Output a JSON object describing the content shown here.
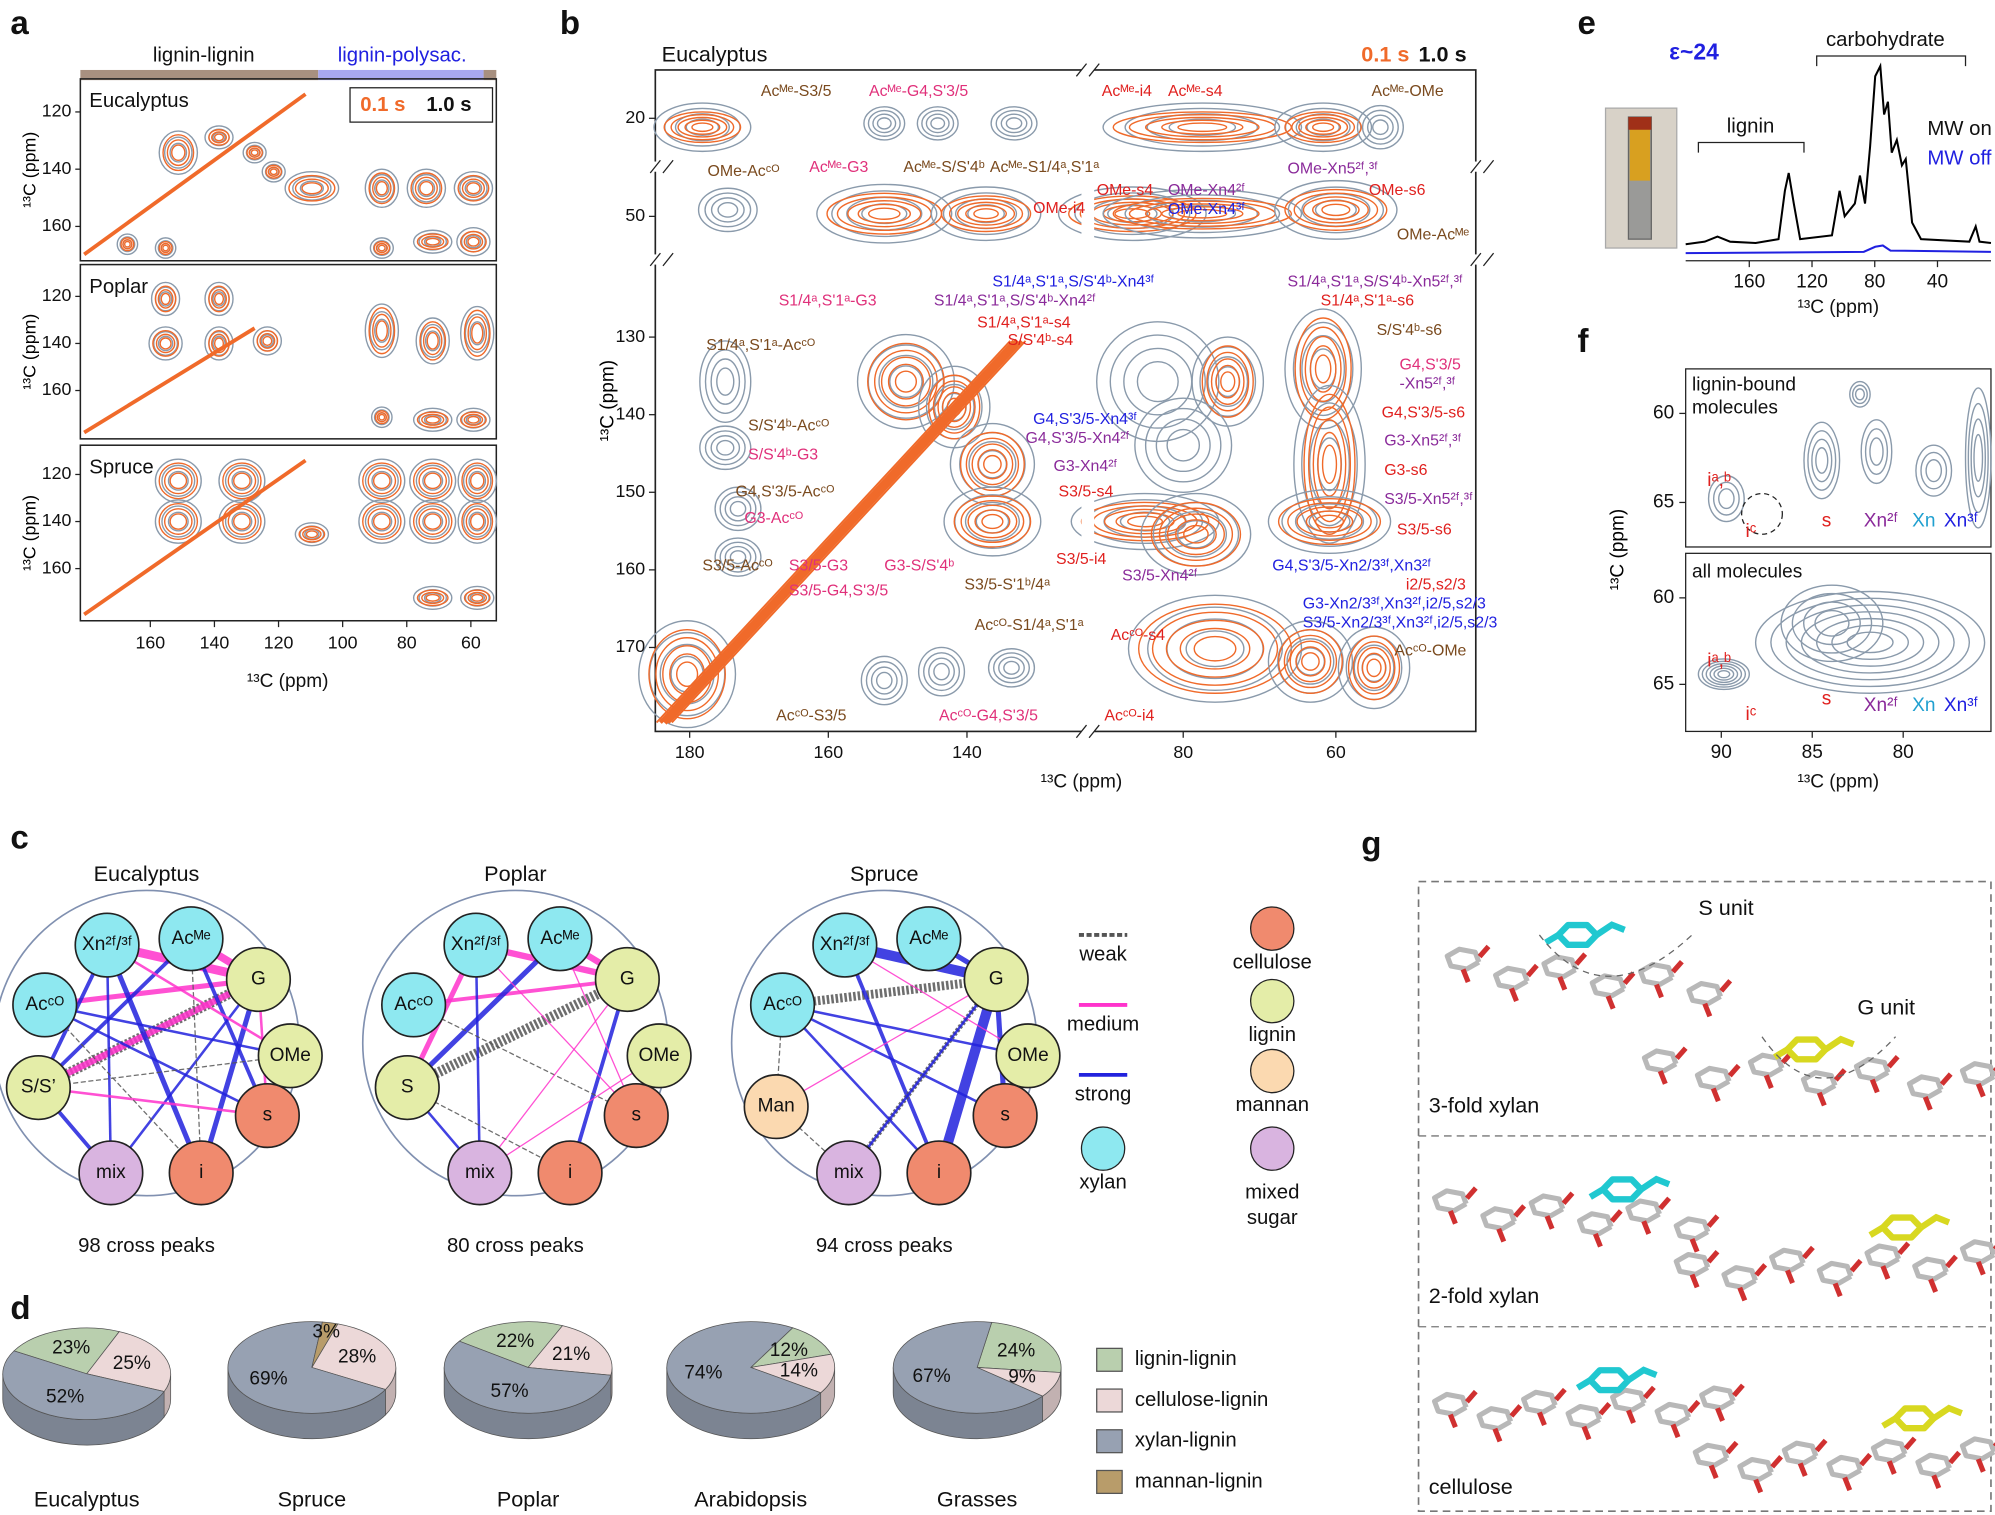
{
  "panels": {
    "a": {
      "label": "a",
      "bar": [
        "lignin-lignin",
        "lignin-polysac."
      ],
      "legend": [
        "0.1 s",
        "1.0 s"
      ],
      "titles": [
        "Eucalyptus",
        "Poplar",
        "Spruce"
      ],
      "xticks": [
        160,
        140,
        120,
        100,
        80,
        60
      ],
      "yticks": [
        120,
        140,
        160
      ],
      "xlabel": "¹³C (ppm)",
      "ylabel": "¹³C (ppm)"
    },
    "b": {
      "label": "b",
      "title": "Eucalyptus",
      "legend": [
        "0.1 s",
        "1.0 s"
      ],
      "xticks": [
        180,
        160,
        140,
        80,
        60
      ],
      "yticks": [
        20,
        50,
        130,
        140,
        150,
        160,
        170
      ],
      "xlabel": "¹³C (ppm)",
      "ylabel": "¹³C (ppm)",
      "labels": [
        "Acᴹᵉ-S3/5",
        "Acᴹᵉ-G4,S'3/5",
        "Acᴹᵉ-G3",
        "Acᴹᵉ-S/S'4ᵇ",
        "Acᴹᵉ-S1/4ᵃ,S'1ᵃ",
        "Acᴹᵉ-i4",
        "Acᴹᵉ-s4",
        "Acᴹᵉ-OMe",
        "OMe-Acᶜᴼ",
        "OMe-i4",
        "OMe-s4",
        "OMe-Xn4²ᶠ",
        "OMe-Xn4³ᶠ",
        "OMe-Xn5²ᶠ,³ᶠ",
        "OMe-s6",
        "OMe-Acᴹᵉ",
        "S1/4ᵃ,S'1ᵃ,S/S'4ᵇ-Xn4³ᶠ",
        "S1/4ᵃ,S'1ᵃ,S/S'4ᵇ-Xn4²ᶠ",
        "S1/4ᵃ,S'1ᵃ-G3",
        "S1/4ᵃ,S'1ᵃ-s4",
        "S/S'4ᵇ-s4",
        "S1/4ᵃ,S'1ᵃ-Acᶜᴼ",
        "S1/4ᵃ,S'1ᵃ,S/S'4ᵇ-Xn5²ᶠ,³ᶠ",
        "S1/4ᵃ,S'1ᵃ-s6",
        "S/S'4ᵇ-s6",
        "G4,S'3/5",
        "-Xn5²ᶠ,³ᶠ",
        "G4,S'3/5-s6",
        "G3-Xn5²ᶠ,³ᶠ",
        "G3-s6",
        "S3/5-Xn5²ᶠ,³ᶠ",
        "S3/5-s6",
        "G4,S'3/5-Xn4³ᶠ",
        "G4,S'3/5-Xn4²ᶠ",
        "G3-Xn4²ᶠ",
        "S3/5-s4",
        "S3/5-i4",
        "S3/5-Xn4²ᶠ",
        "S/S'4ᵇ-Acᶜᴼ",
        "S/S'4ᵇ-G3",
        "G4,S'3/5-Acᶜᴼ",
        "G3-Acᶜᴼ",
        "S3/5-Acᶜᴼ",
        "S3/5-G3",
        "S3/5-G4,S'3/5",
        "G3-S/S'4ᵇ",
        "S3/5-S'1ᵇ/4ᵃ",
        "G4,S'3/5-Xn2/3³ᶠ,Xn3²ᶠ",
        "i2/5,s2/3",
        "G3-Xn2/3³ᶠ,Xn3²ᶠ,i2/5,s2/3",
        "S3/5-Xn2/3³ᶠ,Xn3²ᶠ,i2/5,s2/3",
        "Acᶜᴼ-S1/4ᵃ,S'1ᵃ",
        "Acᶜᴼ-s4",
        "Acᶜᴼ-OMe",
        "Acᶜᴼ-S3/5",
        "Acᶜᴼ-G4,S'3/5",
        "Acᶜᴼ-i4"
      ]
    },
    "c": {
      "label": "c",
      "networks": [
        {
          "title": "Eucalyptus",
          "nodes": [
            "Xn²ᶠ/³ᶠ",
            "Acᴹᵉ",
            "G",
            "Acᶜᴼ",
            "OMe",
            "S/S’",
            "s",
            "i",
            "mix"
          ],
          "caption": "98 cross peaks"
        },
        {
          "title": "Poplar",
          "nodes": [
            "Xn²ᶠ/³ᶠ",
            "Acᴹᵉ",
            "G",
            "Acᶜᴼ",
            "OMe",
            "S",
            "s",
            "i",
            "mix"
          ],
          "caption": "80 cross peaks"
        },
        {
          "title": "Spruce",
          "nodes": [
            "Xn²ᶠ/³ᶠ",
            "Acᴹᵉ",
            "G",
            "Acᶜᴼ",
            "OMe",
            "Man",
            "s",
            "i",
            "mix"
          ],
          "caption": "94 cross peaks"
        }
      ],
      "legend_lines": [
        "weak",
        "medium",
        "strong"
      ],
      "legend_nodes": [
        "cellulose",
        "lignin",
        "mannan",
        "xylan",
        [
          "mixed",
          "sugar"
        ]
      ]
    },
    "d": {
      "label": "d"
    },
    "e": {
      "label": "e",
      "epsilon": "ε~24",
      "carbohydrate": "carbohydrate",
      "lignin": "lignin",
      "legend": [
        "MW on",
        "MW off"
      ],
      "xticks": [
        160,
        120,
        80,
        40
      ],
      "xlabel": "¹³C (ppm)"
    },
    "f": {
      "label": "f",
      "titles": [
        [
          "lignin-bound",
          "molecules"
        ],
        [
          "all molecules"
        ]
      ],
      "peaks": [
        "iᵃ,ᵇ",
        "iᶜ",
        "s",
        "Xn²ᶠ",
        "Xn",
        "Xn³ᶠ"
      ],
      "xticks": [
        90,
        85,
        80
      ],
      "yticks": [
        60,
        65
      ],
      "xlabel": "¹³C (ppm)",
      "ylabel": "¹³C (ppm)"
    },
    "g": {
      "label": "g",
      "texts": [
        "S unit",
        "G unit",
        "3-fold xylan",
        "2-fold xylan",
        "cellulose"
      ]
    }
  },
  "chart_data": {
    "type": "pie",
    "categories": [
      "lignin-lignin",
      "cellulose-lignin",
      "xylan-lignin",
      "mannan-lignin"
    ],
    "colors": [
      "#b9cfae",
      "#ecd8d8",
      "#97a1b2",
      "#b89c6a"
    ],
    "pies": [
      {
        "title": "Eucalyptus",
        "values": [
          23,
          25,
          52,
          null
        ],
        "value_labels": [
          "23%",
          "25%",
          "52%",
          null
        ]
      },
      {
        "title": "Spruce",
        "values": [
          null,
          28,
          69,
          3
        ],
        "value_labels": [
          null,
          "28%",
          "69%",
          "3%"
        ]
      },
      {
        "title": "Poplar",
        "values": [
          22,
          21,
          57,
          null
        ],
        "value_labels": [
          "22%",
          "21%",
          "57%",
          null
        ]
      },
      {
        "title": "Arabidopsis",
        "values": [
          12,
          14,
          74,
          null
        ],
        "value_labels": [
          "12%",
          "14%",
          "74%",
          null
        ]
      },
      {
        "title": "Grasses",
        "values": [
          24,
          9,
          67,
          null
        ],
        "value_labels": [
          "24%",
          "9%",
          "67%",
          null
        ]
      }
    ]
  }
}
